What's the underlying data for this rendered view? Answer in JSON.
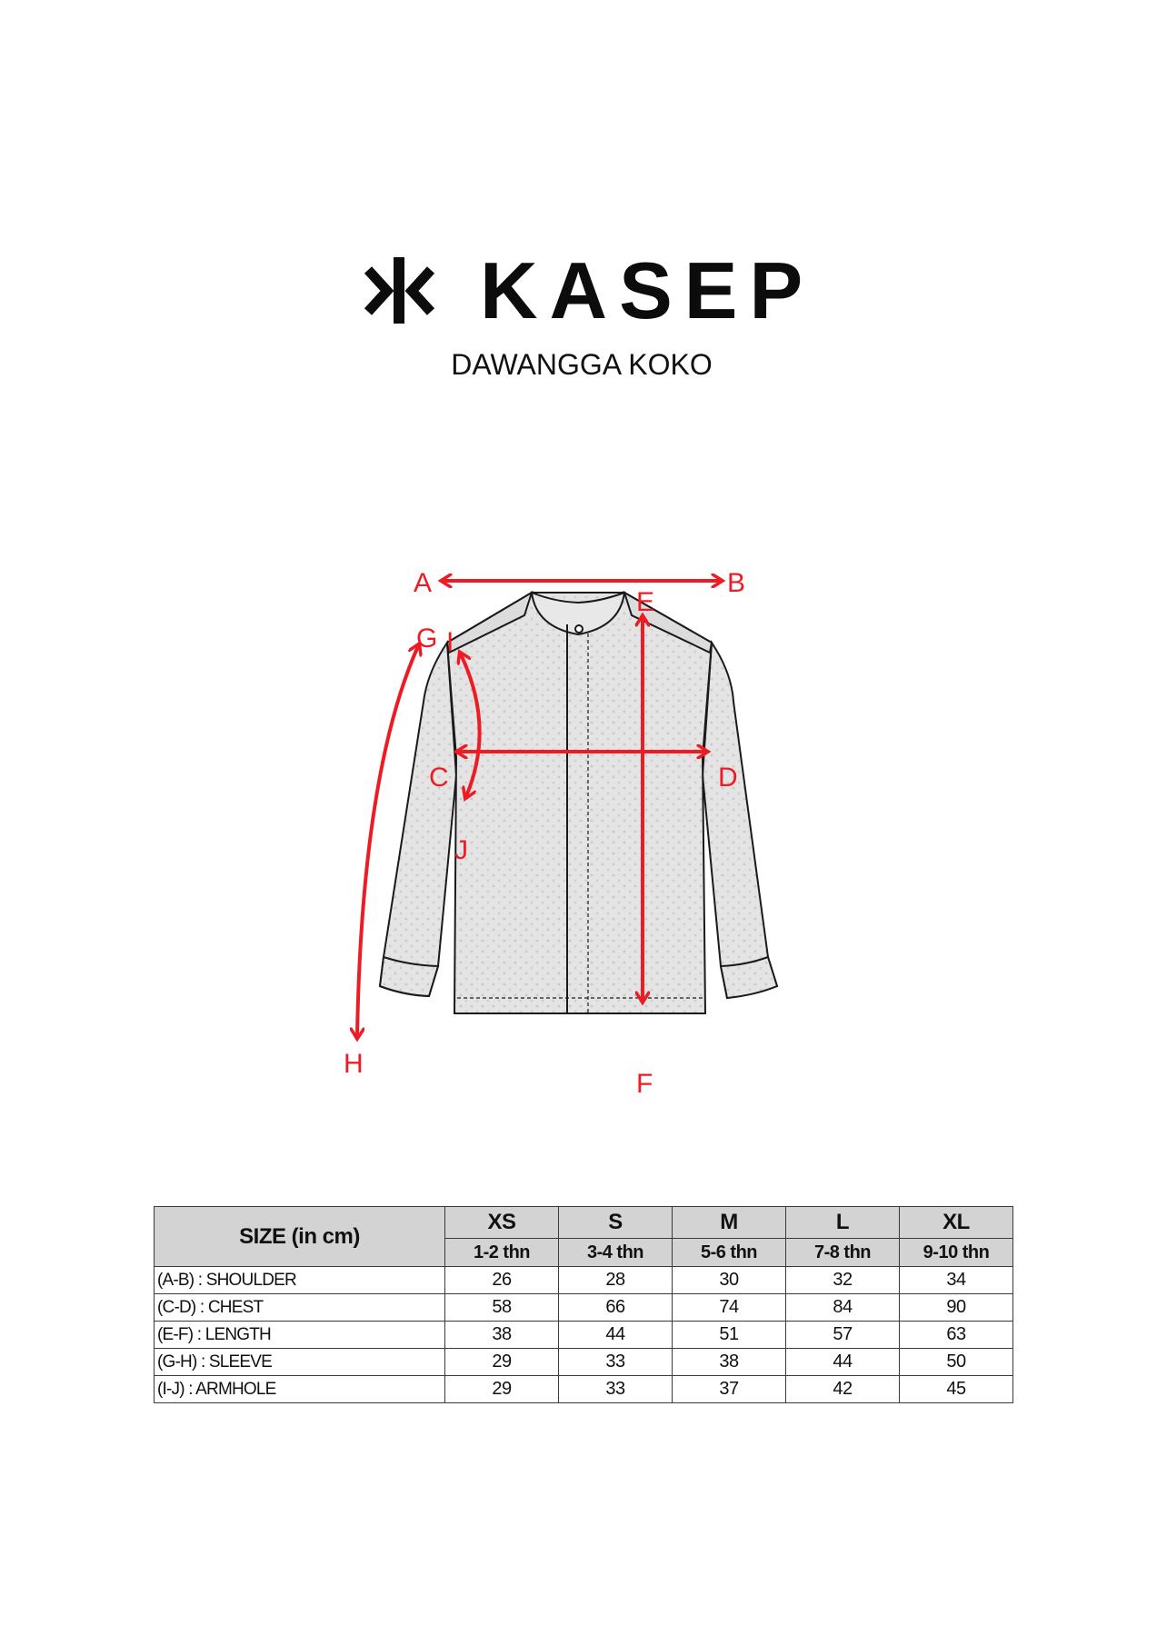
{
  "brand": {
    "name": "KASEP",
    "logo_icon": "kasep-mark-icon"
  },
  "product": {
    "title": "DAWANGGA KOKO"
  },
  "diagram": {
    "arrow_color": "#ed1c24",
    "labels": {
      "a": "A",
      "b": "B",
      "c": "C",
      "d": "D",
      "e": "E",
      "f": "F",
      "g": "G",
      "h": "H",
      "i": "I",
      "j": "J"
    }
  },
  "size_table": {
    "header_label": "SIZE (in cm)",
    "header_bg": "#d3d3d3",
    "sizes": [
      {
        "size": "XS",
        "age": "1-2 thn"
      },
      {
        "size": "S",
        "age": "3-4 thn"
      },
      {
        "size": "M",
        "age": "5-6 thn"
      },
      {
        "size": "L",
        "age": "7-8 thn"
      },
      {
        "size": "XL",
        "age": "9-10 thn"
      }
    ],
    "rows": [
      {
        "label": "(A-B) : SHOULDER",
        "values": [
          "26",
          "28",
          "30",
          "32",
          "34"
        ]
      },
      {
        "label": "(C-D) : CHEST",
        "values": [
          "58",
          "66",
          "74",
          "84",
          "90"
        ]
      },
      {
        "label": "(E-F) : LENGTH",
        "values": [
          "38",
          "44",
          "51",
          "57",
          "63"
        ]
      },
      {
        "label": "(G-H) : SLEEVE",
        "values": [
          "29",
          "33",
          "38",
          "44",
          "50"
        ]
      },
      {
        "label": "(I-J) : ARMHOLE",
        "values": [
          "29",
          "33",
          "37",
          "42",
          "45"
        ]
      }
    ]
  }
}
